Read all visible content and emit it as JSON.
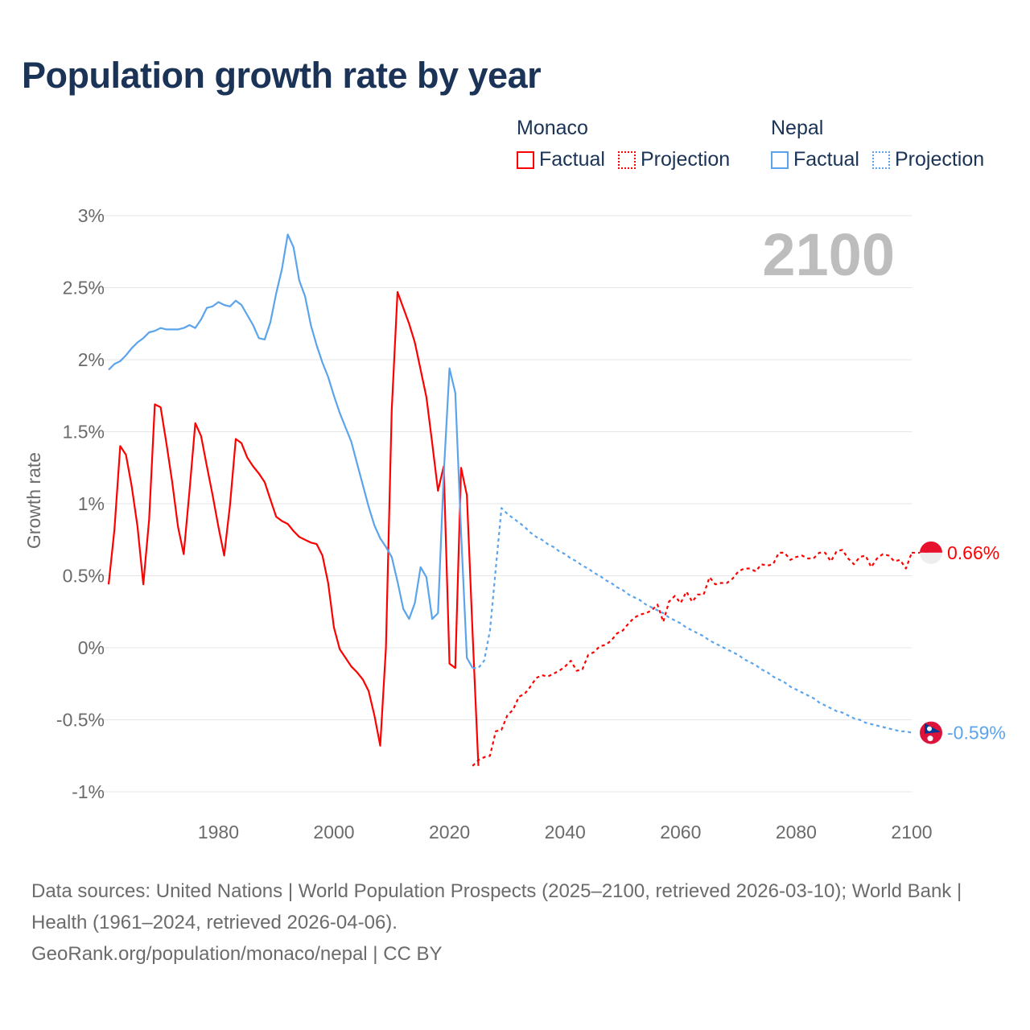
{
  "title": "Population growth rate by year",
  "legend": [
    {
      "group": "Monaco",
      "color": "#ff0000",
      "factual_label": "Factual",
      "projection_label": "Projection"
    },
    {
      "group": "Nepal",
      "color": "#5ba4ec",
      "factual_label": "Factual",
      "projection_label": "Projection"
    }
  ],
  "year_display": "2100",
  "footer": {
    "sources": "Data sources: United Nations | World Population Prospects (2025–2100, retrieved 2026-03-10); World Bank | Health (1961–2024, retrieved 2026-04-06).",
    "credit": "GeoRank.org/population/monaco/nepal | CC BY"
  },
  "chart_data": {
    "type": "line",
    "title": "Population growth rate by year",
    "xlabel": "",
    "ylabel": "Growth rate",
    "xlim": [
      1961,
      2100
    ],
    "ylim": [
      -1.1,
      3
    ],
    "x_ticks": [
      1980,
      2000,
      2020,
      2040,
      2060,
      2080,
      2100
    ],
    "y_ticks": [
      {
        "value": 3,
        "label": "3%"
      },
      {
        "value": 2.5,
        "label": "2.5%"
      },
      {
        "value": 2,
        "label": "2%"
      },
      {
        "value": 1.5,
        "label": "1.5%"
      },
      {
        "value": 1,
        "label": "1%"
      },
      {
        "value": 0.5,
        "label": "0.5%"
      },
      {
        "value": 0,
        "label": "0%"
      },
      {
        "value": -0.5,
        "label": "-0.5%"
      },
      {
        "value": -1,
        "label": "-1%"
      }
    ],
    "grid": true,
    "series": [
      {
        "name": "Monaco Factual",
        "color": "#ff0000",
        "dashed": false,
        "x_start": 1961,
        "values": [
          0.44,
          0.82,
          1.4,
          1.34,
          1.12,
          0.84,
          0.44,
          0.89,
          1.69,
          1.67,
          1.42,
          1.15,
          0.84,
          0.65,
          1.09,
          1.56,
          1.47,
          1.26,
          1.06,
          0.84,
          0.64,
          0.99,
          1.45,
          1.42,
          1.32,
          1.26,
          1.21,
          1.15,
          1.03,
          0.91,
          0.88,
          0.86,
          0.81,
          0.77,
          0.75,
          0.73,
          0.72,
          0.64,
          0.45,
          0.14,
          -0.01,
          -0.07,
          -0.13,
          -0.17,
          -0.22,
          -0.3,
          -0.47,
          -0.68,
          0.0,
          1.65,
          2.47,
          2.36,
          2.25,
          2.12,
          1.93,
          1.74,
          1.42,
          1.09,
          1.26,
          -0.11,
          -0.14,
          1.25,
          1.06,
          0.1,
          -0.82
        ]
      },
      {
        "name": "Monaco Projection",
        "color": "#ff0000",
        "dashed": true,
        "x_start": 2024,
        "values": [
          -0.82,
          -0.78,
          -0.76,
          -0.75,
          -0.58,
          -0.57,
          -0.47,
          -0.43,
          -0.34,
          -0.32,
          -0.27,
          -0.21,
          -0.19,
          -0.2,
          -0.18,
          -0.16,
          -0.13,
          -0.09,
          -0.16,
          -0.15,
          -0.05,
          -0.03,
          0.01,
          0.02,
          0.05,
          0.1,
          0.12,
          0.17,
          0.21,
          0.23,
          0.24,
          0.26,
          0.3,
          0.18,
          0.32,
          0.36,
          0.31,
          0.39,
          0.32,
          0.37,
          0.37,
          0.49,
          0.44,
          0.45,
          0.45,
          0.48,
          0.53,
          0.55,
          0.55,
          0.53,
          0.58,
          0.57,
          0.58,
          0.66,
          0.66,
          0.61,
          0.63,
          0.64,
          0.62,
          0.62,
          0.66,
          0.66,
          0.6,
          0.67,
          0.68,
          0.62,
          0.58,
          0.63,
          0.64,
          0.56,
          0.62,
          0.65,
          0.64,
          0.6,
          0.61,
          0.55,
          0.66
        ]
      },
      {
        "name": "Nepal Factual",
        "color": "#5ba4ec",
        "dashed": false,
        "x_start": 1961,
        "values": [
          1.93,
          1.97,
          1.99,
          2.03,
          2.08,
          2.12,
          2.15,
          2.19,
          2.2,
          2.22,
          2.21,
          2.21,
          2.21,
          2.22,
          2.24,
          2.22,
          2.28,
          2.36,
          2.37,
          2.4,
          2.38,
          2.37,
          2.41,
          2.38,
          2.31,
          2.24,
          2.15,
          2.14,
          2.26,
          2.46,
          2.63,
          2.87,
          2.78,
          2.55,
          2.44,
          2.24,
          2.1,
          1.98,
          1.88,
          1.75,
          1.63,
          1.53,
          1.43,
          1.28,
          1.13,
          0.98,
          0.85,
          0.76,
          0.7,
          0.63,
          0.46,
          0.27,
          0.2,
          0.31,
          0.56,
          0.49,
          0.2,
          0.24,
          1.2,
          1.94,
          1.77,
          0.8,
          -0.07,
          -0.14
        ]
      },
      {
        "name": "Nepal Projection",
        "color": "#5ba4ec",
        "dashed": true,
        "x_start": 2024,
        "values": [
          -0.14,
          -0.14,
          -0.09,
          0.12,
          0.55,
          0.97,
          0.93,
          0.9,
          0.87,
          0.84,
          0.8,
          0.77,
          0.75,
          0.72,
          0.7,
          0.67,
          0.65,
          0.62,
          0.6,
          0.57,
          0.55,
          0.52,
          0.5,
          0.47,
          0.45,
          0.42,
          0.4,
          0.37,
          0.35,
          0.33,
          0.3,
          0.28,
          0.26,
          0.24,
          0.21,
          0.19,
          0.17,
          0.14,
          0.12,
          0.1,
          0.08,
          0.05,
          0.03,
          0.01,
          -0.01,
          -0.03,
          -0.05,
          -0.08,
          -0.1,
          -0.12,
          -0.15,
          -0.17,
          -0.2,
          -0.22,
          -0.24,
          -0.27,
          -0.29,
          -0.31,
          -0.33,
          -0.35,
          -0.38,
          -0.4,
          -0.42,
          -0.44,
          -0.45,
          -0.47,
          -0.49,
          -0.5,
          -0.52,
          -0.53,
          -0.54,
          -0.55,
          -0.56,
          -0.57,
          -0.58,
          -0.58,
          -0.59
        ]
      }
    ],
    "end_labels": [
      {
        "series": "Monaco",
        "label": "0.66%",
        "value": 0.66,
        "color": "#ff0000"
      },
      {
        "series": "Nepal",
        "label": "-0.59%",
        "value": -0.59,
        "color": "#5ba4ec"
      }
    ]
  }
}
